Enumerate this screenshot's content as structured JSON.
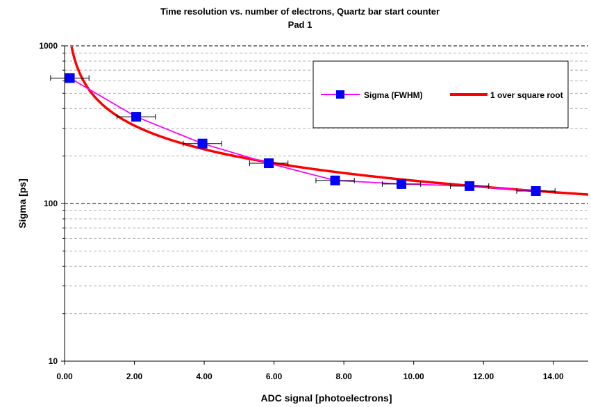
{
  "chart_data": {
    "type": "scatter",
    "title": "Time resolution vs. number of electrons, Quartz bar start counter",
    "subtitle": "Pad 1",
    "xlabel": "ADC signal [photoelectrons]",
    "ylabel": "Sigma [ps]",
    "xlim": [
      0,
      15
    ],
    "ylim": [
      10,
      1000
    ],
    "y_scale": "log",
    "grid": "horizontal minor and major dashed",
    "legend_placement": "top-right",
    "x_tick_labels": [
      "0.00",
      "2.00",
      "4.00",
      "6.00",
      "8.00",
      "10.00",
      "12.00",
      "14.00"
    ],
    "y_tick_labels": [
      "10",
      "100",
      "1000"
    ],
    "series": [
      {
        "name": "Sigma (FWHM)",
        "color": "#ff00ff",
        "marker_color": "#0000ff",
        "marker": "square",
        "x": [
          0.15,
          2.05,
          3.95,
          5.85,
          7.75,
          9.65,
          11.6,
          13.5
        ],
        "y": [
          625,
          355,
          240,
          180,
          140,
          133,
          129,
          120
        ],
        "x_error": [
          0.55,
          0.55,
          0.55,
          0.55,
          0.55,
          0.55,
          0.55,
          0.55
        ]
      },
      {
        "name": "1 over square root",
        "color": "#ff0000",
        "type": "line",
        "function": "sigma = 443 / sqrt(x)",
        "x_range": [
          0.18,
          15
        ],
        "y_range": [
          1000,
          114
        ]
      }
    ]
  }
}
